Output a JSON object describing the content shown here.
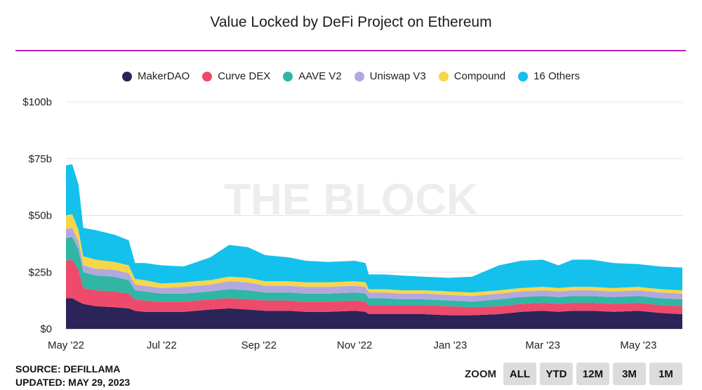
{
  "chart_data": {
    "type": "area",
    "stacked": true,
    "title": "Value Locked by DeFi Project on Ethereum",
    "watermark": "THE BLOCK",
    "y_unit": "USD billions",
    "ylim": [
      0,
      100
    ],
    "y_ticks": [
      {
        "value": 0,
        "label": "$0"
      },
      {
        "value": 25,
        "label": "$25b"
      },
      {
        "value": 50,
        "label": "$50b"
      },
      {
        "value": 75,
        "label": "$75b"
      },
      {
        "value": 100,
        "label": "$100b"
      }
    ],
    "x_ticks": [
      "May '22",
      "Jul '22",
      "Sep '22",
      "Nov '22",
      "Jan '23",
      "Mar '23",
      "May '23"
    ],
    "x_tick_dates": [
      "2022-05-01",
      "2022-07-01",
      "2022-09-01",
      "2022-11-01",
      "2023-01-01",
      "2023-03-01",
      "2023-05-01"
    ],
    "x_range": [
      "2022-05-01",
      "2023-05-29"
    ],
    "grid": true,
    "legend_position": "top",
    "x": [
      "2022-05-01",
      "2022-05-05",
      "2022-05-09",
      "2022-05-12",
      "2022-05-20",
      "2022-06-01",
      "2022-06-10",
      "2022-06-14",
      "2022-06-20",
      "2022-07-01",
      "2022-07-15",
      "2022-08-01",
      "2022-08-13",
      "2022-08-25",
      "2022-09-05",
      "2022-09-20",
      "2022-10-01",
      "2022-10-15",
      "2022-11-01",
      "2022-11-08",
      "2022-11-10",
      "2022-11-20",
      "2022-12-01",
      "2022-12-15",
      "2022-12-31",
      "2023-01-15",
      "2023-02-01",
      "2023-02-15",
      "2023-03-01",
      "2023-03-11",
      "2023-03-20",
      "2023-04-01",
      "2023-04-15",
      "2023-05-01",
      "2023-05-15",
      "2023-05-29"
    ],
    "series": [
      {
        "name": "MakerDAO",
        "color": "#2b2458",
        "values": [
          13.5,
          13.5,
          12,
          11,
          10,
          9.5,
          9,
          8,
          7.5,
          7.5,
          7.5,
          8.5,
          9,
          8.5,
          8,
          8,
          7.5,
          7.5,
          8,
          7.5,
          6.5,
          6.5,
          6.5,
          6.5,
          6,
          6,
          6.5,
          7.5,
          8,
          7.5,
          8,
          8,
          7.5,
          8,
          7,
          6.5
        ]
      },
      {
        "name": "Curve DEX",
        "color": "#ee4a6b",
        "values": [
          16.5,
          17,
          14,
          7,
          7,
          7,
          6.5,
          5,
          5,
          4.5,
          4.5,
          4.5,
          4.5,
          4.5,
          4.5,
          4.5,
          4.5,
          4.5,
          4.5,
          4.5,
          4,
          4,
          4,
          4,
          4,
          3.5,
          3.5,
          3.5,
          3.5,
          3.5,
          3.5,
          3.5,
          3.5,
          3.5,
          3.5,
          3.5
        ]
      },
      {
        "name": "AAVE V2",
        "color": "#2fb6a4",
        "values": [
          10,
          10,
          9,
          7,
          6.5,
          6.5,
          6,
          4,
          4,
          3.5,
          3.5,
          3.5,
          4,
          4,
          3.5,
          3.5,
          3.5,
          3.5,
          3.5,
          3.5,
          3,
          3,
          2.5,
          2.5,
          2.5,
          2.5,
          3,
          3,
          3,
          3,
          3,
          3,
          3,
          3,
          3,
          3
        ]
      },
      {
        "name": "Uniswap V3",
        "color": "#b3a7e0",
        "values": [
          4,
          4,
          3.5,
          3,
          3,
          3,
          3,
          2.5,
          2.5,
          2.5,
          3,
          3,
          3.5,
          3.5,
          3,
          3,
          3,
          3,
          3,
          3,
          2.5,
          2.5,
          2.5,
          2.5,
          2.5,
          2.5,
          2.5,
          2.5,
          2.5,
          2.5,
          2.5,
          2.5,
          2.5,
          2.5,
          2.5,
          2.5
        ]
      },
      {
        "name": "Compound",
        "color": "#f7d64a",
        "values": [
          6,
          6,
          5,
          4,
          4,
          3.5,
          3.5,
          2.5,
          2.5,
          2,
          2,
          2,
          2,
          2,
          2,
          2,
          2,
          2,
          2,
          2,
          1.5,
          1.5,
          1.5,
          1.5,
          1.5,
          1.5,
          1.5,
          1.5,
          1.5,
          1.5,
          1.5,
          1.5,
          1.5,
          1.5,
          1.5,
          1.5
        ]
      },
      {
        "name": "16 Others",
        "color": "#14c0ec",
        "values": [
          22,
          22,
          20,
          12.5,
          13,
          12,
          11,
          7,
          7.5,
          8,
          7,
          10,
          14,
          13.5,
          11.5,
          10.5,
          9.5,
          9,
          9,
          8.5,
          6.5,
          6.5,
          6.5,
          6,
          6,
          7,
          11,
          12,
          12,
          10,
          12,
          12,
          11,
          10,
          10,
          10
        ]
      }
    ]
  },
  "footer": {
    "source": "SOURCE: DEFILLAMA",
    "updated": "UPDATED: MAY 29, 2023"
  },
  "zoom": {
    "label": "ZOOM",
    "buttons": [
      "ALL",
      "YTD",
      "12M",
      "3M",
      "1M"
    ]
  }
}
